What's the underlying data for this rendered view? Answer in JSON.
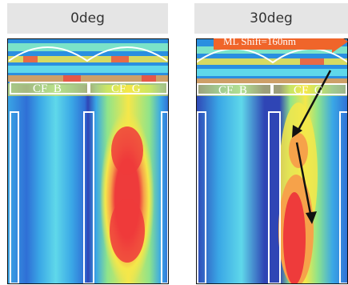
{
  "panels": [
    {
      "id": "left",
      "title": "0deg",
      "labels": {
        "cf_b": "CF_B",
        "cf_g": "CF_G"
      }
    },
    {
      "id": "right",
      "title": "30deg",
      "labels": {
        "cf_b": "CF_B",
        "cf_g": "CF_G"
      },
      "shift_label": "ML Shift=160nm"
    }
  ],
  "colors": {
    "deep_blue": "#2f45b5",
    "blue": "#1e6fd9",
    "light_blue": "#3bb2e8",
    "cyan": "#5fe3e6",
    "green": "#b6e85a",
    "yellow": "#f5e74a",
    "orange": "#f6a24a",
    "red": "#ee3b3b",
    "arrow_orange": "#f0652a"
  }
}
